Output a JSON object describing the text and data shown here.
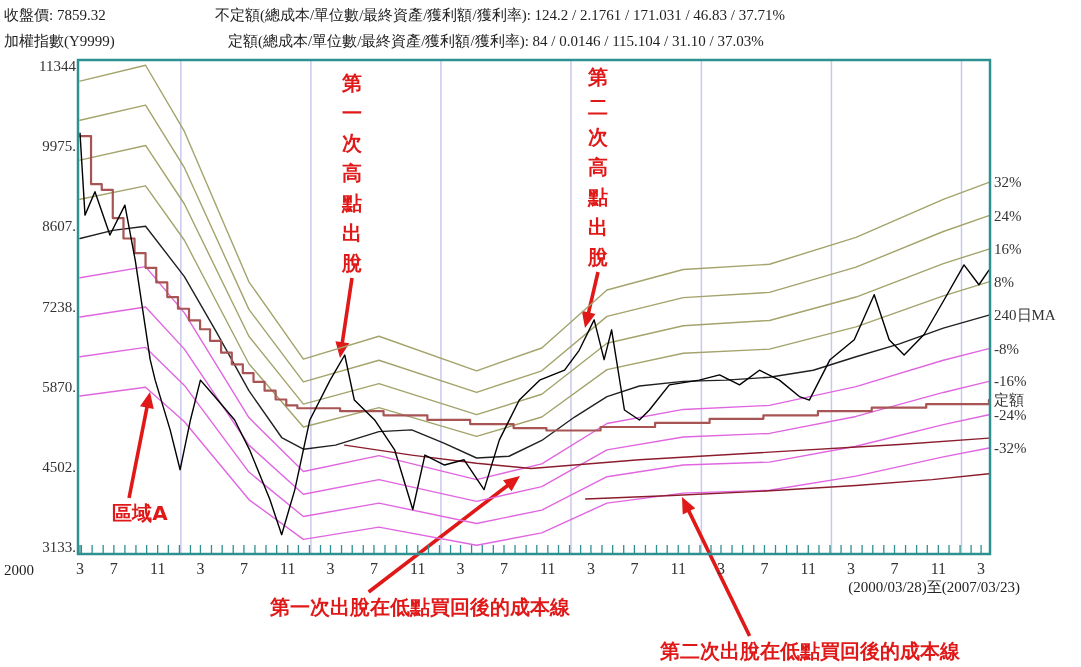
{
  "chart_data": {
    "type": "line",
    "title": "加權指數(Y9999)",
    "annotations": [
      "收盤價: 7859.32",
      "不定額(總成本/單位數/最終資產/獲利額/獲利率): 124.2 / 2.1761 / 171.031 / 46.83 / 37.71%",
      "定額(總成本/單位數/最終資產/獲利額/獲利率): 84 / 0.0146 / 115.104 / 31.10 / 37.03%",
      "(2000/03/28)至(2007/03/23)",
      "2000",
      "第一次高點出脫",
      "第二次高點出脫",
      "區域A",
      "第一次出脫在低點買回後的成本線",
      "第二次出脫在低點買回後的成本線"
    ],
    "xlim": [
      "2000-03-28",
      "2007-03-26"
    ],
    "ylim": [
      3010,
      11450
    ],
    "yticks": [
      {
        "value": 3133,
        "label": "3133."
      },
      {
        "value": 4502,
        "label": "4502."
      },
      {
        "value": 5870,
        "label": "5870."
      },
      {
        "value": 7238,
        "label": "7238."
      },
      {
        "value": 8607,
        "label": "8607."
      },
      {
        "value": 9975,
        "label": "9975."
      },
      11344
    ],
    "xticks": [
      {
        "value": "2000-03-28",
        "label": "3"
      },
      {
        "value": "2000-04-01",
        "label": null
      },
      {
        "value": "2000-05-01",
        "label": null
      },
      {
        "value": "2000-06-01",
        "label": null
      },
      {
        "value": "2000-07-01",
        "label": "7"
      },
      {
        "value": "2000-08-01",
        "label": null
      },
      {
        "value": "2000-09-01",
        "label": null
      },
      {
        "value": "2000-10-01",
        "label": null
      },
      {
        "value": "2000-11-01",
        "label": "11"
      },
      {
        "value": "2000-12-01",
        "label": null
      },
      {
        "value": "2001-01-01",
        "label": null
      },
      {
        "value": "2001-02-01",
        "label": null
      },
      {
        "value": "2001-03-01",
        "label": "3"
      },
      {
        "value": "2001-04-01",
        "label": null
      },
      {
        "value": "2001-05-01",
        "label": null
      },
      {
        "value": "2001-06-01",
        "label": null
      },
      {
        "value": "2001-07-01",
        "label": "7"
      },
      {
        "value": "2001-08-01",
        "label": null
      },
      {
        "value": "2001-09-01",
        "label": null
      },
      {
        "value": "2001-10-01",
        "label": null
      },
      {
        "value": "2001-11-01",
        "label": "11"
      },
      {
        "value": "2001-12-01",
        "label": null
      },
      {
        "value": "2002-01-01",
        "label": null
      },
      {
        "value": "2002-02-01",
        "label": null
      },
      {
        "value": "2002-03-01",
        "label": "3"
      },
      {
        "value": "2002-04-01",
        "label": null
      },
      {
        "value": "2002-05-01",
        "label": null
      },
      {
        "value": "2002-06-01",
        "label": null
      },
      {
        "value": "2002-07-01",
        "label": "7"
      },
      {
        "value": "2002-08-01",
        "label": null
      },
      {
        "value": "2002-09-01",
        "label": null
      },
      {
        "value": "2002-10-01",
        "label": null
      },
      {
        "value": "2002-11-01",
        "label": "11"
      },
      {
        "value": "2002-12-01",
        "label": null
      },
      {
        "value": "2003-01-01",
        "label": null
      },
      {
        "value": "2003-02-01",
        "label": null
      },
      {
        "value": "2003-03-01",
        "label": "3"
      },
      {
        "value": "2003-04-01",
        "label": null
      },
      {
        "value": "2003-05-01",
        "label": null
      },
      {
        "value": "2003-06-01",
        "label": null
      },
      {
        "value": "2003-07-01",
        "label": "7"
      },
      {
        "value": "2003-08-01",
        "label": null
      },
      {
        "value": "2003-09-01",
        "label": null
      },
      {
        "value": "2003-10-01",
        "label": null
      },
      {
        "value": "2003-11-01",
        "label": "11"
      },
      {
        "value": "2003-12-01",
        "label": null
      },
      {
        "value": "2004-01-01",
        "label": null
      },
      {
        "value": "2004-02-01",
        "label": null
      },
      {
        "value": "2004-03-01",
        "label": "3"
      },
      {
        "value": "2004-04-01",
        "label": null
      },
      {
        "value": "2004-05-01",
        "label": null
      },
      {
        "value": "2004-06-01",
        "label": null
      },
      {
        "value": "2004-07-01",
        "label": "7"
      },
      {
        "value": "2004-08-01",
        "label": null
      },
      {
        "value": "2004-09-01",
        "label": null
      },
      {
        "value": "2004-10-01",
        "label": null
      },
      {
        "value": "2004-11-01",
        "label": "11"
      },
      {
        "value": "2004-12-01",
        "label": null
      },
      {
        "value": "2005-01-01",
        "label": null
      },
      {
        "value": "2005-02-01",
        "label": null
      },
      {
        "value": "2005-03-01",
        "label": "3"
      },
      {
        "value": "2005-04-01",
        "label": null
      },
      {
        "value": "2005-05-01",
        "label": null
      },
      {
        "value": "2005-06-01",
        "label": null
      },
      {
        "value": "2005-07-01",
        "label": "7"
      },
      {
        "value": "2005-08-01",
        "label": null
      },
      {
        "value": "2005-09-01",
        "label": null
      },
      {
        "value": "2005-10-01",
        "label": null
      },
      {
        "value": "2005-11-01",
        "label": "11"
      },
      {
        "value": "2005-12-01",
        "label": null
      },
      {
        "value": "2006-01-01",
        "label": null
      },
      {
        "value": "2006-02-01",
        "label": null
      },
      {
        "value": "2006-03-01",
        "label": "3"
      },
      {
        "value": "2006-04-01",
        "label": null
      },
      {
        "value": "2006-05-01",
        "label": null
      },
      {
        "value": "2006-06-01",
        "label": null
      },
      {
        "value": "2006-07-01",
        "label": "7"
      },
      {
        "value": "2006-08-01",
        "label": null
      },
      {
        "value": "2006-09-01",
        "label": null
      },
      {
        "value": "2006-10-01",
        "label": null
      },
      {
        "value": "2006-11-01",
        "label": "11"
      },
      {
        "value": "2006-12-01",
        "label": null
      },
      {
        "value": "2007-01-01",
        "label": null
      },
      {
        "value": "2007-02-01",
        "label": null
      },
      {
        "value": "2007-03-01",
        "label": "3"
      }
    ],
    "ref_lines": [
      {
        "axis": "x",
        "value": "2001-01-05",
        "color": "#c8c8ee"
      },
      {
        "axis": "x",
        "value": "2002-01-05",
        "color": "#c8c8ee"
      },
      {
        "axis": "x",
        "value": "2003-01-05",
        "color": "#c8c8ee"
      },
      {
        "axis": "x",
        "value": "2004-01-05",
        "color": "#c8c8ee"
      },
      {
        "axis": "x",
        "value": "2005-01-05",
        "color": "#c8c8ee"
      },
      {
        "axis": "x",
        "value": "2006-01-05",
        "color": "#c8c8ee"
      },
      {
        "axis": "x",
        "value": "2007-01-05",
        "color": "#c8c8ee"
      }
    ],
    "series": [
      {
        "name": "32%",
        "color": "#a3a36b",
        "x": [
          "2000-03-28",
          "2000-09-28",
          "2001-01-15",
          "2001-07-15",
          "2001-12-15",
          "2002-07-15",
          "2003-04-15",
          "2003-10-15",
          "2004-04-15",
          "2004-11-15",
          "2005-07-15",
          "2006-03-15",
          "2006-11-15",
          "2007-03-23"
        ],
        "values": [
          11090,
          11360,
          10230,
          7660,
          6340,
          6730,
          6140,
          6530,
          7520,
          7870,
          7960,
          8420,
          9070,
          9360
        ]
      },
      {
        "name": "24%",
        "color": "#a3a36b",
        "x": [
          "2000-03-28",
          "2000-09-28",
          "2001-01-15",
          "2001-07-15",
          "2001-12-15",
          "2002-07-15",
          "2003-04-15",
          "2003-10-15",
          "2004-04-15",
          "2004-11-15",
          "2005-07-15",
          "2006-03-15",
          "2006-11-15",
          "2007-03-23"
        ],
        "values": [
          10420,
          10680,
          9610,
          7190,
          5950,
          6320,
          5770,
          6140,
          7070,
          7390,
          7480,
          7910,
          8520,
          8790
        ]
      },
      {
        "name": "16%",
        "color": "#a3a36b",
        "x": [
          "2000-03-28",
          "2000-09-28",
          "2001-01-15",
          "2001-07-15",
          "2001-12-15",
          "2002-07-15",
          "2003-04-15",
          "2003-10-15",
          "2004-04-15",
          "2004-11-15",
          "2005-07-15",
          "2006-03-15",
          "2006-11-15",
          "2007-03-23"
        ],
        "values": [
          9740,
          9990,
          8990,
          6730,
          5570,
          5920,
          5390,
          5740,
          6610,
          6910,
          7000,
          7400,
          7970,
          8220
        ]
      },
      {
        "name": "8%",
        "color": "#a3a36b",
        "x": [
          "2000-03-28",
          "2000-09-28",
          "2001-01-15",
          "2001-07-15",
          "2001-12-15",
          "2002-07-15",
          "2003-04-15",
          "2003-10-15",
          "2004-04-15",
          "2004-11-15",
          "2005-07-15",
          "2006-03-15",
          "2006-11-15",
          "2007-03-23"
        ],
        "values": [
          9070,
          9300,
          8370,
          6260,
          5180,
          5510,
          5020,
          5350,
          6160,
          6440,
          6510,
          6890,
          7420,
          7660
        ]
      },
      {
        "name": "240日MA",
        "color": "#202020",
        "x": [
          "2000-03-28",
          "2000-06-28",
          "2000-09-28",
          "2001-01-15",
          "2001-04-15",
          "2001-07-15",
          "2001-10-15",
          "2001-12-15",
          "2002-03-15",
          "2002-07-15",
          "2002-10-15",
          "2003-01-15",
          "2003-04-15",
          "2003-07-15",
          "2003-10-15",
          "2004-01-15",
          "2004-04-15",
          "2004-07-15",
          "2004-11-15",
          "2005-03-15",
          "2005-07-15",
          "2005-11-15",
          "2006-03-15",
          "2006-07-15",
          "2006-11-15",
          "2007-03-23"
        ],
        "values": [
          8400,
          8540,
          8610,
          7750,
          6800,
          5800,
          5000,
          4800,
          4870,
          5100,
          5130,
          4900,
          4650,
          4680,
          4950,
          5350,
          5700,
          5880,
          5960,
          5980,
          6030,
          6150,
          6380,
          6600,
          6870,
          7090
        ]
      },
      {
        "name": "-8%",
        "color": "#e066e0",
        "x": [
          "2000-03-28",
          "2000-09-28",
          "2001-01-15",
          "2001-07-15",
          "2001-12-15",
          "2002-07-15",
          "2003-04-15",
          "2003-10-15",
          "2004-04-15",
          "2004-11-15",
          "2005-07-15",
          "2006-03-15",
          "2006-11-15",
          "2007-03-23"
        ],
        "values": [
          7730,
          7920,
          7130,
          5340,
          4420,
          4690,
          4280,
          4550,
          5240,
          5480,
          5550,
          5870,
          6320,
          6520
        ]
      },
      {
        "name": "-16%",
        "color": "#e066e0",
        "x": [
          "2000-03-28",
          "2000-09-28",
          "2001-01-15",
          "2001-07-15",
          "2001-12-15",
          "2002-07-15",
          "2003-04-15",
          "2003-10-15",
          "2004-04-15",
          "2004-11-15",
          "2005-07-15",
          "2006-03-15",
          "2006-11-15",
          "2007-03-23"
        ],
        "values": [
          7060,
          7230,
          6510,
          4870,
          4030,
          4280,
          3910,
          4160,
          4790,
          5010,
          5070,
          5360,
          5770,
          5960
        ]
      },
      {
        "name": "-24%",
        "color": "#e066e0",
        "x": [
          "2000-03-28",
          "2000-09-28",
          "2001-01-15",
          "2001-07-15",
          "2001-12-15",
          "2002-07-15",
          "2003-04-15",
          "2003-10-15",
          "2004-04-15",
          "2004-11-15",
          "2005-07-15",
          "2006-03-15",
          "2006-11-15",
          "2007-03-23"
        ],
        "values": [
          6380,
          6540,
          5890,
          4410,
          3650,
          3880,
          3530,
          3760,
          4330,
          4530,
          4580,
          4850,
          5220,
          5390
        ]
      },
      {
        "name": "-32%",
        "color": "#e066e0",
        "x": [
          "2000-03-28",
          "2000-09-28",
          "2001-01-15",
          "2001-07-15",
          "2001-12-15",
          "2002-07-15",
          "2003-04-15",
          "2003-10-15",
          "2004-04-15",
          "2004-11-15",
          "2005-07-15",
          "2006-03-15",
          "2006-11-15",
          "2007-03-23"
        ],
        "values": [
          5710,
          5860,
          5270,
          3940,
          3260,
          3470,
          3160,
          3370,
          3880,
          4050,
          4100,
          4340,
          4670,
          4820
        ]
      },
      {
        "name": "定額",
        "type": "step",
        "color": "#a85454",
        "x": [
          "2000-03-28",
          "2000-04-28",
          "2000-05-28",
          "2000-06-28",
          "2000-07-28",
          "2000-08-28",
          "2000-09-28",
          "2000-10-28",
          "2000-11-28",
          "2000-12-28",
          "2001-01-28",
          "2001-02-28",
          "2001-03-28",
          "2001-04-28",
          "2001-05-28",
          "2001-06-28",
          "2001-07-28",
          "2001-08-28",
          "2001-09-28",
          "2001-10-28",
          "2001-11-28",
          "2002-03-28",
          "2002-07-28",
          "2002-11-28",
          "2003-03-28",
          "2003-07-28",
          "2003-10-28",
          "2004-03-28",
          "2004-08-28",
          "2005-01-28",
          "2005-06-28",
          "2005-11-28",
          "2006-04-28",
          "2006-09-28",
          "2007-03-23"
        ],
        "values": [
          10150,
          9330,
          9230,
          8750,
          8400,
          8150,
          7900,
          7650,
          7400,
          7200,
          7000,
          6850,
          6650,
          6450,
          6250,
          6100,
          5950,
          5800,
          5650,
          5550,
          5500,
          5450,
          5380,
          5300,
          5230,
          5160,
          5120,
          5180,
          5250,
          5320,
          5380,
          5450,
          5510,
          5570,
          5640
        ]
      },
      {
        "color": "#8b1c2c",
        "x": [
          "2002-04-10",
          "2002-10-15",
          "2003-04-15",
          "2003-09-15",
          "2004-07-15",
          "2005-07-15",
          "2006-07-15",
          "2007-03-23"
        ],
        "values": [
          4870,
          4700,
          4560,
          4470,
          4620,
          4750,
          4880,
          4990
        ]
      },
      {
        "color": "#8b1c2c",
        "x": [
          "2004-02-15",
          "2004-10-15",
          "2005-06-15",
          "2006-03-15",
          "2006-10-15",
          "2007-03-23"
        ],
        "values": [
          3950,
          4010,
          4080,
          4180,
          4280,
          4380
        ]
      },
      {
        "color": "#000000",
        "x": [
          "2000-03-28",
          "2000-04-11",
          "2000-05-09",
          "2000-06-20",
          "2000-08-01",
          "2000-08-30",
          "2000-10-11",
          "2000-10-25",
          "2000-12-06",
          "2001-01-03",
          "2001-02-01",
          "2001-03-01",
          "2001-04-10",
          "2001-06-05",
          "2001-07-17",
          "2001-09-12",
          "2001-10-15",
          "2001-11-21",
          "2002-01-02",
          "2002-02-28",
          "2002-04-10",
          "2002-05-07",
          "2002-07-03",
          "2002-08-28",
          "2002-10-18",
          "2002-11-21",
          "2003-01-15",
          "2003-03-11",
          "2003-05-06",
          "2003-06-18",
          "2003-08-13",
          "2003-10-09",
          "2003-12-18",
          "2004-01-28",
          "2004-03-10",
          "2004-04-07",
          "2004-04-28",
          "2004-06-03",
          "2004-07-15",
          "2004-08-12",
          "2004-10-07",
          "2004-12-30",
          "2005-02-25",
          "2005-04-22",
          "2005-06-17",
          "2005-08-12",
          "2005-10-07",
          "2005-11-04",
          "2006-01-01",
          "2006-03-10",
          "2006-05-05",
          "2006-06-16",
          "2006-07-28",
          "2006-09-22",
          "2006-11-17",
          "2007-01-12",
          "2007-02-23",
          "2007-03-23"
        ],
        "values": [
          10200,
          8800,
          9200,
          8460,
          8970,
          8030,
          6330,
          5980,
          5130,
          4450,
          5300,
          5980,
          5700,
          5300,
          4790,
          3940,
          3340,
          4110,
          5300,
          5980,
          6410,
          5640,
          5300,
          4790,
          3770,
          4700,
          4530,
          4620,
          4110,
          4960,
          5640,
          5980,
          6150,
          6490,
          7010,
          6330,
          6840,
          5470,
          5300,
          5470,
          5900,
          5980,
          6070,
          5900,
          6150,
          5980,
          5700,
          5640,
          6330,
          6670,
          7440,
          6670,
          6410,
          6760,
          7350,
          7950,
          7610,
          7860
        ]
      }
    ]
  }
}
